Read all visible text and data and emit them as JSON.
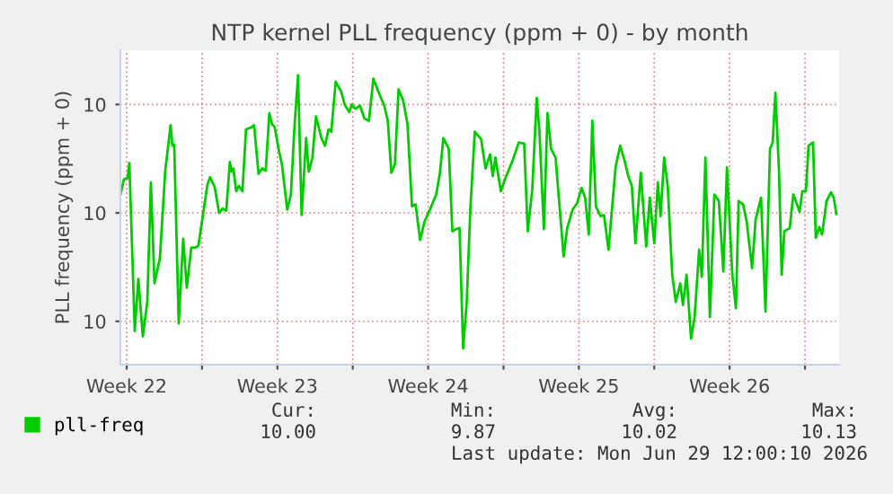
{
  "chart_data": {
    "type": "line",
    "title": "NTP kernel PLL frequency (ppm + 0) - by month",
    "ylabel": "PLL frequency (ppm + 0)",
    "xlim": [
      "2026-05-27T05:00",
      "2026-06-29T14:00"
    ],
    "ylim": [
      9.86,
      10.15
    ],
    "xticks": [
      {
        "value": "2026-05-27T12:00",
        "label": "Week 22"
      },
      {
        "value": "2026-05-31",
        "label": null
      },
      {
        "value": "2026-06-03T12:00",
        "label": "Week 23"
      },
      {
        "value": "2026-06-07",
        "label": null
      },
      {
        "value": "2026-06-10T12:00",
        "label": "Week 24"
      },
      {
        "value": "2026-06-14",
        "label": null
      },
      {
        "value": "2026-06-17T12:00",
        "label": "Week 25"
      },
      {
        "value": "2026-06-21",
        "label": null
      },
      {
        "value": "2026-06-24T12:00",
        "label": "Week 26"
      },
      {
        "value": "2026-06-28",
        "label": null
      }
    ],
    "yticks": [
      {
        "value": 9.9,
        "label": "10"
      },
      {
        "value": 10.0,
        "label": "10"
      },
      {
        "value": 10.1,
        "label": "10"
      }
    ],
    "grid": true,
    "legend": "bottom",
    "marker": "none",
    "line_style": "solid",
    "series": [
      {
        "name": "pll-freq",
        "color": "#00cc00",
        "x": [
          "2026-05-27T05:00",
          "2026-05-27T09:00",
          "2026-05-27T13:00",
          "2026-05-27T15:00",
          "2026-05-27T21:00",
          "2026-05-28T01:00",
          "2026-05-28T06:00",
          "2026-05-28T11:00",
          "2026-05-28T15:00",
          "2026-05-28T19:00",
          "2026-05-29T01:00",
          "2026-05-29T07:00",
          "2026-05-29T13:00",
          "2026-05-29T15:00",
          "2026-05-29T17:00",
          "2026-05-29T22:00",
          "2026-05-30T03:00",
          "2026-05-30T07:00",
          "2026-05-30T12:00",
          "2026-05-30T17:00",
          "2026-05-30T20:00",
          "2026-05-31T01:00",
          "2026-05-31T06:00",
          "2026-05-31T09:00",
          "2026-05-31T14:00",
          "2026-05-31T19:00",
          "2026-05-31T23:00",
          "2026-06-01T03:00",
          "2026-06-01T07:00",
          "2026-06-01T09:00",
          "2026-06-01T11:00",
          "2026-06-01T14:00",
          "2026-06-01T17:00",
          "2026-06-01T21:00",
          "2026-06-02T01:00",
          "2026-06-02T07:00",
          "2026-06-02T10:00",
          "2026-06-02T15:00",
          "2026-06-02T19:00",
          "2026-06-02T23:00",
          "2026-06-03T03:00",
          "2026-06-03T06:00",
          "2026-06-03T09:00",
          "2026-06-03T14:00",
          "2026-06-03T17:00",
          "2026-06-03T23:00",
          "2026-06-04T03:00",
          "2026-06-04T07:00",
          "2026-06-04T11:00",
          "2026-06-04T15:00",
          "2026-06-04T20:00",
          "2026-06-04T23:00",
          "2026-06-05T03:00",
          "2026-06-05T07:00",
          "2026-06-05T13:00",
          "2026-06-05T17:00",
          "2026-06-05T21:00",
          "2026-06-06T00:00",
          "2026-06-06T05:00",
          "2026-06-06T11:00",
          "2026-06-06T15:00",
          "2026-06-06T20:00",
          "2026-06-06T23:00",
          "2026-06-07T03:00",
          "2026-06-07T08:00",
          "2026-06-07T13:00",
          "2026-06-07T18:00",
          "2026-06-07T23:00",
          "2026-06-08T04:00",
          "2026-06-08T11:00",
          "2026-06-08T15:00",
          "2026-06-08T19:00",
          "2026-06-08T23:00",
          "2026-06-09T03:00",
          "2026-06-09T08:00",
          "2026-06-09T13:00",
          "2026-06-09T18:00",
          "2026-06-09T22:00",
          "2026-06-10T03:00",
          "2026-06-10T08:00",
          "2026-06-10T14:00",
          "2026-06-10T21:00",
          "2026-06-11T01:00",
          "2026-06-11T05:00",
          "2026-06-11T11:00",
          "2026-06-11T15:00",
          "2026-06-11T19:00",
          "2026-06-11T23:00",
          "2026-06-12T03:00",
          "2026-06-12T07:00",
          "2026-06-12T11:00",
          "2026-06-12T16:00",
          "2026-06-12T23:00",
          "2026-06-13T04:00",
          "2026-06-13T09:00",
          "2026-06-13T12:00",
          "2026-06-13T15:00",
          "2026-06-13T21:00",
          "2026-06-14T03:00",
          "2026-06-14T10:00",
          "2026-06-14T17:00",
          "2026-06-14T23:00",
          "2026-06-15T03:00",
          "2026-06-15T08:00",
          "2026-06-15T13:00",
          "2026-06-15T16:00",
          "2026-06-15T21:00",
          "2026-06-16T01:00",
          "2026-06-16T05:00",
          "2026-06-16T10:00",
          "2026-06-16T19:00",
          "2026-06-16T23:00",
          "2026-06-17T05:00",
          "2026-06-17T10:00",
          "2026-06-17T15:00",
          "2026-06-17T19:00",
          "2026-06-17T23:00",
          "2026-06-18T03:00",
          "2026-06-18T07:00",
          "2026-06-18T12:00",
          "2026-06-18T16:00",
          "2026-06-18T21:00",
          "2026-06-19T05:00",
          "2026-06-19T10:00",
          "2026-06-19T15:00",
          "2026-06-19T19:00",
          "2026-06-19T23:00",
          "2026-06-20T03:00",
          "2026-06-20T09:00",
          "2026-06-20T15:00",
          "2026-06-20T19:00",
          "2026-06-21T00:00",
          "2026-06-21T04:00",
          "2026-06-21T07:00",
          "2026-06-21T11:00",
          "2026-06-21T15:00",
          "2026-06-21T20:00",
          "2026-06-22T00:00",
          "2026-06-22T05:00",
          "2026-06-22T08:00",
          "2026-06-22T12:00",
          "2026-06-22T17:00",
          "2026-06-22T21:00",
          "2026-06-23T02:00",
          "2026-06-23T05:00",
          "2026-06-23T09:00",
          "2026-06-23T14:00",
          "2026-06-23T19:00",
          "2026-06-24T00:00",
          "2026-06-24T05:00",
          "2026-06-24T09:00",
          "2026-06-24T15:00",
          "2026-06-24T19:00",
          "2026-06-24T22:00",
          "2026-06-25T03:00",
          "2026-06-25T07:00",
          "2026-06-25T13:00",
          "2026-06-25T17:00",
          "2026-06-25T23:00",
          "2026-06-26T04:00",
          "2026-06-26T09:00",
          "2026-06-26T12:00",
          "2026-06-26T15:00",
          "2026-06-26T19:00",
          "2026-06-26T22:00",
          "2026-06-27T01:00",
          "2026-06-27T07:00",
          "2026-06-27T11:00",
          "2026-06-27T15:00",
          "2026-06-27T18:00",
          "2026-06-27T21:00",
          "2026-06-28T01:00",
          "2026-06-28T04:00",
          "2026-06-28T09:00",
          "2026-06-28T12:00",
          "2026-06-28T16:00",
          "2026-06-28T19:00",
          "2026-06-29T00:00",
          "2026-06-29T05:00",
          "2026-06-29T08:00",
          "2026-06-29T11:00"
        ],
        "values": [
          10.017,
          10.031,
          10.032,
          10.046,
          9.891,
          9.939,
          9.886,
          9.918,
          10.028,
          9.935,
          9.958,
          10.039,
          10.081,
          10.062,
          10.063,
          9.898,
          9.976,
          9.931,
          9.968,
          9.968,
          9.97,
          9.998,
          10.026,
          10.033,
          10.024,
          10.0,
          10.004,
          10.002,
          10.047,
          10.038,
          10.041,
          10.02,
          10.025,
          10.02,
          10.077,
          10.079,
          10.081,
          10.036,
          10.041,
          10.039,
          10.092,
          10.082,
          10.079,
          10.056,
          10.045,
          10.003,
          10.017,
          10.079,
          10.127,
          9.998,
          10.069,
          10.038,
          10.051,
          10.089,
          10.069,
          10.062,
          10.077,
          10.075,
          10.121,
          10.112,
          10.1,
          10.093,
          10.1,
          10.096,
          10.099,
          10.087,
          10.085,
          10.124,
          10.113,
          10.099,
          10.085,
          10.037,
          10.045,
          10.114,
          10.104,
          10.082,
          10.006,
          10.008,
          9.975,
          9.992,
          10.003,
          10.017,
          10.036,
          10.069,
          10.059,
          9.983,
          9.985,
          9.986,
          9.875,
          9.918,
          10.003,
          10.075,
          10.068,
          10.041,
          10.054,
          10.034,
          10.051,
          10.02,
          10.034,
          10.048,
          10.065,
          10.064,
          9.983,
          10.021,
          10.106,
          10.076,
          9.985,
          10.092,
          10.059,
          10.051,
          9.96,
          9.986,
          10.003,
          10.009,
          10.023,
          10.014,
          9.98,
          10.085,
          10.006,
          9.997,
          9.998,
          9.966,
          10.043,
          10.062,
          10.048,
          10.034,
          10.025,
          9.972,
          10.037,
          9.969,
          10.014,
          9.972,
          10.028,
          9.997,
          10.051,
          10.025,
          9.943,
          9.918,
          9.935,
          9.915,
          9.943,
          9.884,
          9.904,
          9.966,
          9.941,
          10.051,
          9.904,
          10.017,
          10.011,
          9.946,
          10.042,
          9.943,
          9.912,
          10.011,
          10.008,
          9.992,
          9.949,
          9.994,
          10.014,
          9.909,
          10.059,
          10.065,
          10.111,
          10.039,
          9.943,
          9.983,
          9.986,
          10.017,
          10.008,
          10.001,
          10.02,
          10.02,
          10.062,
          10.065,
          9.977,
          9.987,
          9.98,
          10.011,
          10.019,
          10.014,
          9.999
        ]
      }
    ],
    "annotations": [
      "Cur:",
      "Min:",
      "Avg:",
      "Max:",
      "10.00",
      "9.87",
      "10.02",
      "10.13",
      "Last update: Mon Jun 29 12:00:10 2026"
    ]
  }
}
